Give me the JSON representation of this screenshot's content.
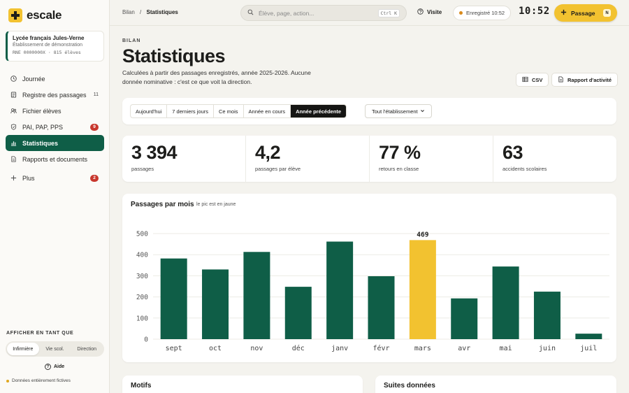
{
  "app": {
    "name": "escale"
  },
  "school": {
    "name": "Lycée français Jules-Verne",
    "subtitle": "Établissement de démonstration",
    "rne": "RNE 0000000X · 815 élèves"
  },
  "sidebar": {
    "items": [
      {
        "label": "Journée",
        "icon": "clock-icon"
      },
      {
        "label": "Registre des passages",
        "icon": "register-icon",
        "count": "11"
      },
      {
        "label": "Fichier élèves",
        "icon": "users-icon"
      },
      {
        "label": "PAI, PAP, PPS",
        "icon": "shield-icon",
        "badge": "9"
      },
      {
        "label": "Statistiques",
        "icon": "chart-icon",
        "active": true
      },
      {
        "label": "Rapports et documents",
        "icon": "document-icon"
      },
      {
        "label": "Plus",
        "icon": "plus-icon",
        "badge": "2"
      }
    ],
    "role_title": "AFFICHER EN TANT QUE",
    "roles": [
      "Infirmière",
      "Vie scol.",
      "Direction"
    ],
    "help": "Aide",
    "fictive": "Données entièrement fictives"
  },
  "topbar": {
    "crumb_root": "Bilan",
    "crumb_sep": "/",
    "crumb_current": "Statistiques",
    "search_placeholder": "Élève, page, action...",
    "search_kbd": "Ctrl K",
    "visit": "Visite",
    "saved": "Enregistré 10:52",
    "clock": "10:52",
    "passage": "Passage",
    "passage_key": "N"
  },
  "header": {
    "kicker": "BILAN",
    "title": "Statistiques",
    "desc": "Calculées à partir des passages enregistrés, année 2025-2026. Aucune donnée nominative : c'est ce que voit la direction.",
    "csv": "CSV",
    "report": "Rapport d'activité"
  },
  "filters": {
    "periods": [
      "Aujourd'hui",
      "7 derniers jours",
      "Ce mois",
      "Année en cours",
      "Année précédente"
    ],
    "active_period": "Année précédente",
    "scope": "Tout l'établissement"
  },
  "kpis": [
    {
      "value": "3 394",
      "label": "passages"
    },
    {
      "value": "4,2",
      "label": "passages par élève"
    },
    {
      "value": "77 %",
      "label": "retours en classe"
    },
    {
      "value": "63",
      "label": "accidents scolaires"
    }
  ],
  "chart_card": {
    "title": "Passages par mois",
    "subtitle": "le pic est en jaune"
  },
  "chart_data": {
    "type": "bar",
    "categories": [
      "sept",
      "oct",
      "nov",
      "déc",
      "janv",
      "févr",
      "mars",
      "avr",
      "mai",
      "juin",
      "juil"
    ],
    "values": [
      382,
      330,
      413,
      248,
      462,
      298,
      469,
      193,
      344,
      225,
      26
    ],
    "highlight_index": 6,
    "highlight_label": "469",
    "ylim": [
      0,
      500
    ],
    "yticks": [
      0,
      100,
      200,
      300,
      400,
      500
    ],
    "grid": true,
    "colors": {
      "bar": "#0f5e47",
      "highlight": "#f2c230"
    }
  },
  "bottom_cards": {
    "left": "Motifs",
    "right": "Suites données"
  }
}
